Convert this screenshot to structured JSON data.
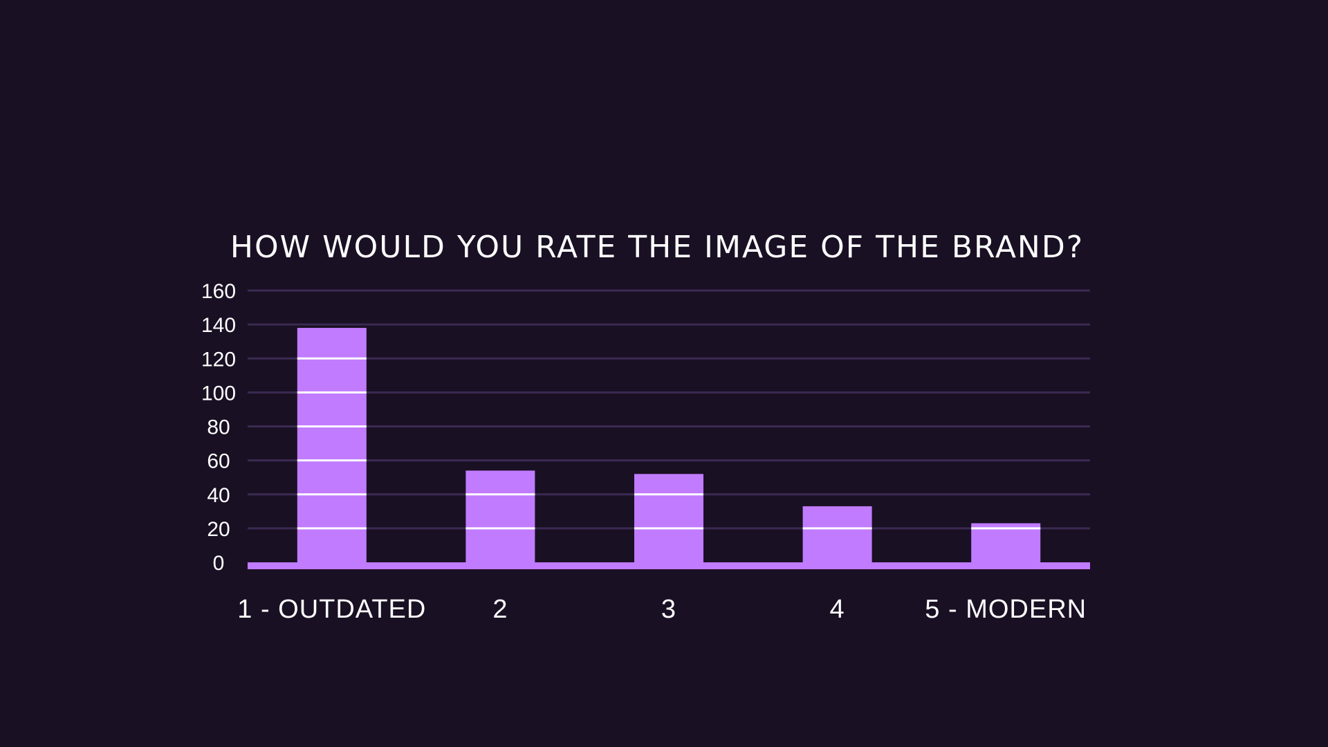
{
  "colors": {
    "background": "#1a1024",
    "bar": "#c17bff",
    "gridline": "#3a2a52",
    "text": "#ffffff"
  },
  "chart_data": {
    "type": "bar",
    "title": "How would you rate the image of the brand?",
    "xlabel": "",
    "ylabel": "",
    "categories": [
      "1 - Outdated",
      "2",
      "3",
      "4",
      "5 - Modern"
    ],
    "values": [
      138,
      54,
      52,
      33,
      23
    ],
    "ylim": [
      0,
      160
    ],
    "yticks": [
      0,
      20,
      40,
      60,
      80,
      100,
      120,
      140,
      160
    ],
    "grid": true,
    "legend": "none"
  }
}
